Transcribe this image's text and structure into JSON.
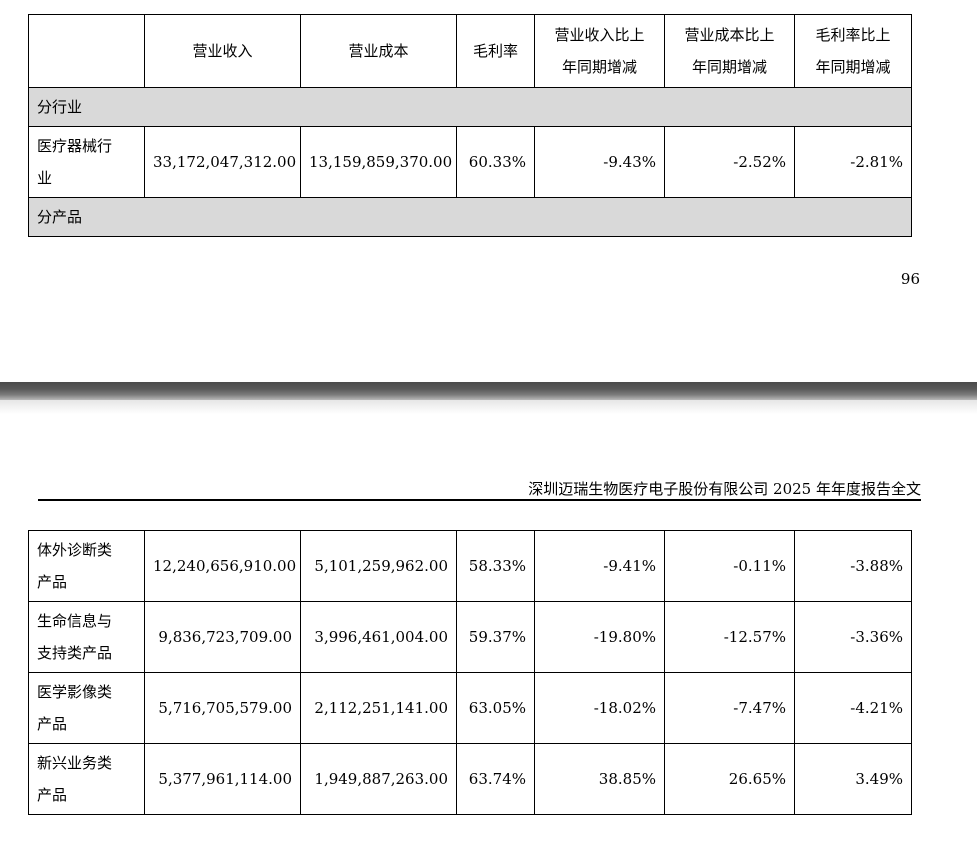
{
  "page_top": {
    "header_row": [
      "",
      "营业收入",
      "营业成本",
      "毛利率",
      "营业收入比上年同期增减",
      "营业成本比上年同期增减",
      "毛利率比上年同期增减"
    ],
    "header_lines": {
      "col1": "营业收入",
      "col2": "营业成本",
      "col3": "毛利率",
      "col4_l1": "营业收入比上",
      "col4_l2": "年同期增减",
      "col5_l1": "营业成本比上",
      "col5_l2": "年同期增减",
      "col6_l1": "毛利率比上",
      "col6_l2": "年同期增减"
    },
    "section_industry": "分行业",
    "industry_row": {
      "label_l1": "医疗器械行",
      "label_l2": "业",
      "revenue": "33,172,047,312.00",
      "cost": "13,159,859,370.00",
      "gross_margin": "60.33%",
      "revenue_change": "-9.43%",
      "cost_change": "-2.52%",
      "margin_change": "-2.81%"
    },
    "section_product": "分产品",
    "page_number": "96"
  },
  "page_bottom": {
    "doc_header": "深圳迈瑞生物医疗电子股份有限公司 2025 年年度报告全文",
    "rows": [
      {
        "label_l1": "体外诊断类",
        "label_l2": "产品",
        "revenue": "12,240,656,910.00",
        "cost": "5,101,259,962.00",
        "gross_margin": "58.33%",
        "revenue_change": "-9.41%",
        "cost_change": "-0.11%",
        "margin_change": "-3.88%"
      },
      {
        "label_l1": "生命信息与",
        "label_l2": "支持类产品",
        "revenue": "9,836,723,709.00",
        "cost": "3,996,461,004.00",
        "gross_margin": "59.37%",
        "revenue_change": "-19.80%",
        "cost_change": "-12.57%",
        "margin_change": "-3.36%"
      },
      {
        "label_l1": "医学影像类",
        "label_l2": "产品",
        "revenue": "5,716,705,579.00",
        "cost": "2,112,251,141.00",
        "gross_margin": "63.05%",
        "revenue_change": "-18.02%",
        "cost_change": "-7.47%",
        "margin_change": "-4.21%"
      },
      {
        "label_l1": "新兴业务类",
        "label_l2": "产品",
        "revenue": "5,377,961,114.00",
        "cost": "1,949,887,263.00",
        "gross_margin": "63.74%",
        "revenue_change": "38.85%",
        "cost_change": "26.65%",
        "margin_change": "3.49%"
      }
    ]
  }
}
